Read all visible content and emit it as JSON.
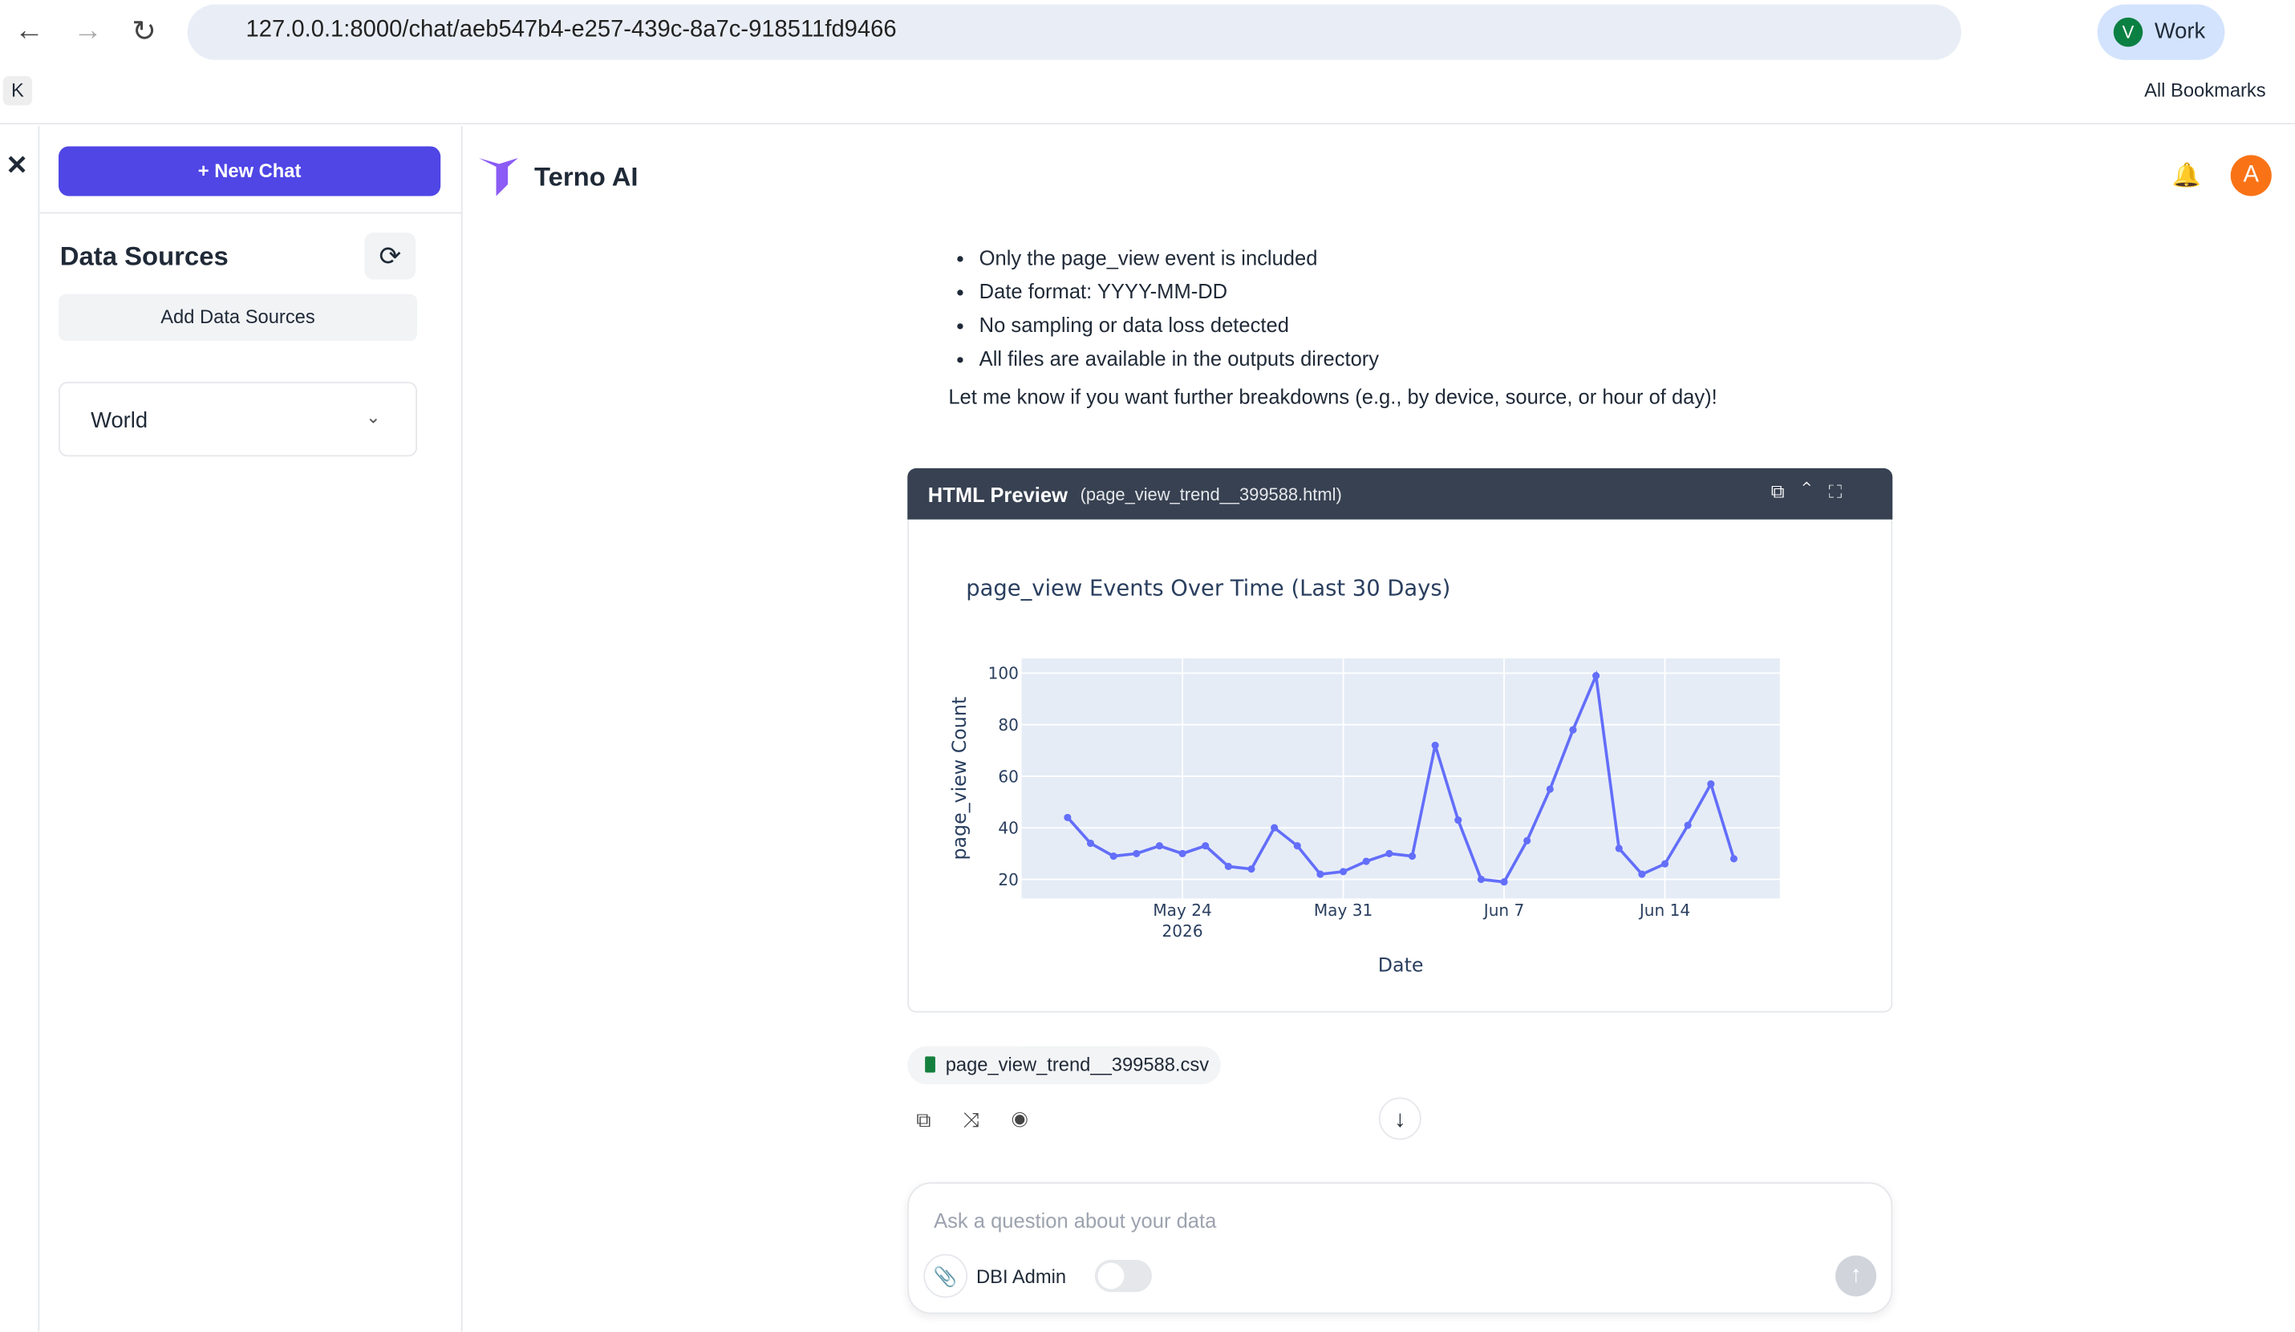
{
  "browser": {
    "url": "127.0.0.1:8000/chat/aeb547b4-e257-439c-8a7c-918511fd9466",
    "profile_initial": "V",
    "profile": "Work",
    "bookmark_k": "K",
    "all_bookmarks": "All Bookmarks"
  },
  "sidebar": {
    "new_chat": "New Chat",
    "data_sources": "Data Sources",
    "add_data_sources": "Add Data Sources",
    "source": "World"
  },
  "header": {
    "brand": "Terno AI",
    "avatar": "A"
  },
  "message": {
    "bullets": [
      "Only the page_view event is included",
      "Date format: YYYY-MM-DD",
      "No sampling or data loss detected",
      "All files are available in the outputs directory"
    ],
    "closing": "Let me know if you want further breakdowns (e.g., by device, source, or hour of day)!"
  },
  "preview": {
    "title": "HTML Preview",
    "file": "(page_view_trend__399588.html)"
  },
  "chart_data": {
    "type": "line",
    "title": "page_view Events Over Time (Last 30 Days)",
    "x_label": "Date",
    "y_label": "page_view Count",
    "color": "#636efa",
    "grid": true,
    "x": [
      "2026-05-19",
      "2026-05-20",
      "2026-05-21",
      "2026-05-22",
      "2026-05-23",
      "2026-05-24",
      "2026-05-25",
      "2026-05-26",
      "2026-05-27",
      "2026-05-28",
      "2026-05-29",
      "2026-05-30",
      "2026-05-31",
      "2026-06-01",
      "2026-06-02",
      "2026-06-03",
      "2026-06-04",
      "2026-06-05",
      "2026-06-06",
      "2026-06-07",
      "2026-06-08",
      "2026-06-09",
      "2026-06-10",
      "2026-06-11",
      "2026-06-12",
      "2026-06-13",
      "2026-06-14",
      "2026-06-15",
      "2026-06-16",
      "2026-06-17"
    ],
    "values": [
      44,
      34,
      29,
      30,
      33,
      30,
      33,
      25,
      24,
      40,
      33,
      22,
      23,
      27,
      30,
      29,
      72,
      43,
      20,
      19,
      35,
      55,
      78,
      99,
      32,
      22,
      26,
      41,
      57,
      28
    ],
    "xlim": [
      "2026-05-17",
      "2026-06-19"
    ],
    "xticks": [
      {
        "value": "2026-05-24",
        "label": "May 24",
        "year": "2026"
      },
      {
        "value": "2026-05-31",
        "label": "May 31"
      },
      {
        "value": "2026-06-07",
        "label": "Jun 7"
      },
      {
        "value": "2026-06-14",
        "label": "Jun 14"
      }
    ],
    "ylim": [
      12.6,
      105.7
    ],
    "yticks": [
      20,
      40,
      60,
      80,
      100
    ]
  },
  "attachment": "page_view_trend__399588.csv",
  "input": {
    "placeholder": "Ask a question about your data",
    "toggle_label": "DBI Admin"
  }
}
